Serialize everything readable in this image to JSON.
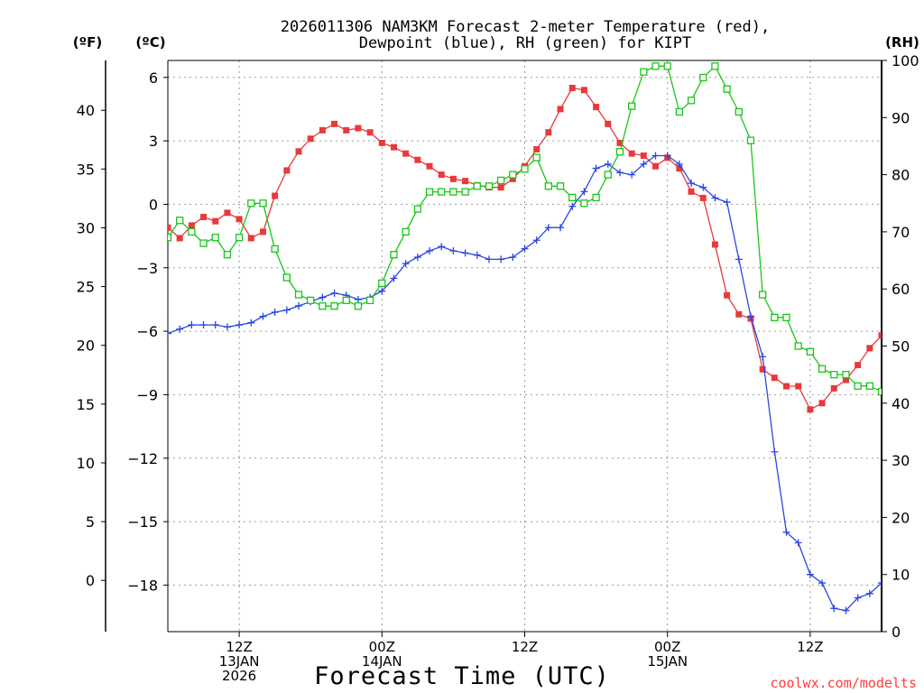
{
  "header": {
    "title_line1": "2026011306 NAM3KM Forecast 2-meter Temperature (red),",
    "title_line2": "Dewpoint (blue), RH (green) for KIPT",
    "unit_f": "(ºF)",
    "unit_c": "(ºC)",
    "unit_rh": "(RH)"
  },
  "footer": {
    "xlabel": "Forecast Time (UTC)",
    "credit": "coolwx.com/modelts"
  },
  "colors": {
    "temperature": "#e8393b",
    "dewpoint": "#2b47e0",
    "rh": "#19c619",
    "axis": "#000000"
  },
  "chart_data": {
    "type": "line",
    "title": "2026011306 NAM3KM Forecast 2-meter Temperature (red), Dewpoint (blue), RH (green) for KIPT",
    "xlabel": "Forecast Time (UTC)",
    "x_hours_from_run": [
      0,
      1,
      2,
      3,
      4,
      5,
      6,
      7,
      8,
      9,
      10,
      11,
      12,
      13,
      14,
      15,
      16,
      17,
      18,
      19,
      20,
      21,
      22,
      23,
      24,
      25,
      26,
      27,
      28,
      29,
      30,
      31,
      32,
      33,
      34,
      35,
      36,
      37,
      38,
      39,
      40,
      41,
      42,
      43,
      44,
      45,
      46,
      47,
      48,
      49,
      50,
      51,
      52,
      53,
      54,
      55,
      56,
      57,
      58,
      59,
      60
    ],
    "xlim": [
      0,
      60
    ],
    "x_ticks": [
      {
        "hour": 6,
        "lines": [
          "12Z",
          "13JAN",
          "2026"
        ]
      },
      {
        "hour": 18,
        "lines": [
          "00Z",
          "14JAN"
        ]
      },
      {
        "hour": 30,
        "lines": [
          "12Z"
        ]
      },
      {
        "hour": 42,
        "lines": [
          "00Z",
          "15JAN"
        ]
      },
      {
        "hour": 54,
        "lines": [
          "12Z"
        ]
      }
    ],
    "y_celsius": {
      "lim": [
        -20.2,
        6.8
      ],
      "ticks": [
        6,
        3,
        0,
        -3,
        -6,
        -9,
        -12,
        -15,
        -18
      ],
      "tick_labels": [
        "6",
        "3",
        "0",
        "−3",
        "−6",
        "−9",
        "−12",
        "−15",
        "−18"
      ]
    },
    "y_fahrenheit": {
      "ticks": [
        40,
        35,
        30,
        25,
        20,
        15,
        10,
        5,
        0
      ],
      "tick_labels": [
        "40",
        "35",
        "30",
        "25",
        "20",
        "15",
        "10",
        "5",
        "0"
      ]
    },
    "y_rh": {
      "lim": [
        0,
        100
      ],
      "ticks": [
        100,
        90,
        80,
        70,
        60,
        50,
        40,
        30,
        20,
        10,
        0
      ],
      "tick_labels": [
        "100",
        "90",
        "80",
        "70",
        "60",
        "50",
        "40",
        "30",
        "20",
        "10",
        "0"
      ]
    },
    "series": [
      {
        "name": "2-meter Temperature",
        "units": "°C",
        "marker": "filled-square",
        "values": [
          -1.1,
          -1.6,
          -1.0,
          -0.6,
          -0.8,
          -0.4,
          -0.7,
          -1.6,
          -1.3,
          0.4,
          1.6,
          2.5,
          3.1,
          3.5,
          3.8,
          3.5,
          3.6,
          3.4,
          2.9,
          2.7,
          2.4,
          2.1,
          1.8,
          1.4,
          1.2,
          1.1,
          0.9,
          0.8,
          0.8,
          1.2,
          1.8,
          2.6,
          3.4,
          4.5,
          5.5,
          5.4,
          4.6,
          3.8,
          2.9,
          2.4,
          2.3,
          1.8,
          2.2,
          1.7,
          0.6,
          0.3,
          -1.9,
          -4.3,
          -5.2,
          -5.4,
          -7.8,
          -8.2,
          -8.6,
          -8.6,
          -9.7,
          -9.4,
          -8.7,
          -8.3,
          -7.6,
          -6.8,
          -6.2
        ]
      },
      {
        "name": "Dewpoint",
        "units": "°C",
        "marker": "plus",
        "values": [
          -6.1,
          -5.9,
          -5.7,
          -5.7,
          -5.7,
          -5.8,
          -5.7,
          -5.6,
          -5.3,
          -5.1,
          -5.0,
          -4.8,
          -4.6,
          -4.4,
          -4.2,
          -4.3,
          -4.5,
          -4.4,
          -4.1,
          -3.5,
          -2.8,
          -2.5,
          -2.2,
          -2.0,
          -2.2,
          -2.3,
          -2.4,
          -2.6,
          -2.6,
          -2.5,
          -2.1,
          -1.7,
          -1.1,
          -1.1,
          -0.1,
          0.6,
          1.7,
          1.9,
          1.5,
          1.4,
          1.9,
          2.3,
          2.3,
          1.9,
          1.0,
          0.8,
          0.3,
          0.1,
          -2.6,
          -5.3,
          -7.2,
          -11.7,
          -15.5,
          -16.0,
          -17.5,
          -17.9,
          -19.1,
          -19.2,
          -18.6,
          -18.4,
          -17.9
        ]
      },
      {
        "name": "RH",
        "units": "%",
        "axis": "right",
        "marker": "open-square",
        "values": [
          69,
          72,
          70,
          68,
          69,
          66,
          69,
          75,
          75,
          67,
          62,
          59,
          58,
          57,
          57,
          58,
          57,
          58,
          61,
          66,
          70,
          74,
          77,
          77,
          77,
          77,
          78,
          78,
          79,
          80,
          81,
          83,
          78,
          78,
          76,
          75,
          76,
          80,
          84,
          92,
          98,
          99,
          99,
          91,
          93,
          97,
          99,
          95,
          91,
          86,
          59,
          55,
          55,
          50,
          49,
          46,
          45,
          45,
          43,
          43,
          42
        ]
      }
    ]
  }
}
